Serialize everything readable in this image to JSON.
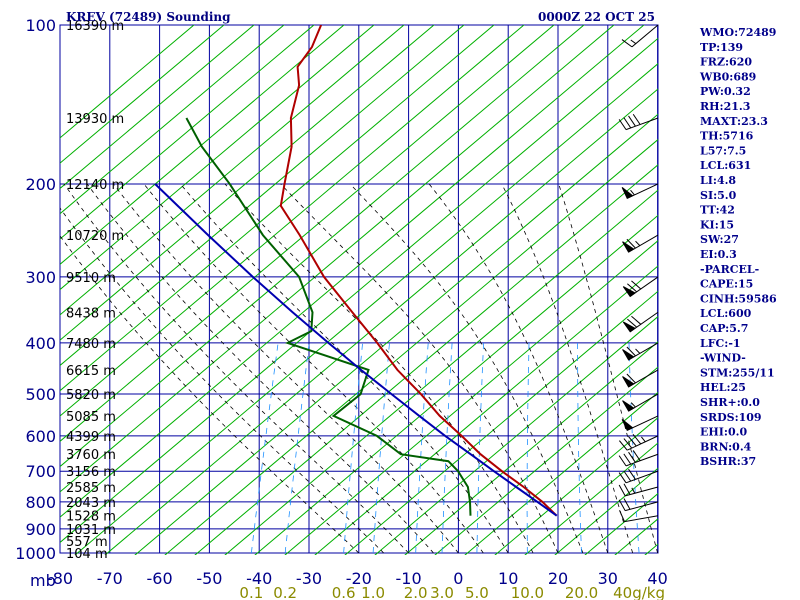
{
  "header": {
    "title": "KREV (72489) Sounding",
    "datetime": "0000Z 22 OCT 25"
  },
  "indices": [
    "WMO:72489",
    "TP:139",
    "FRZ:620",
    "WB0:689",
    "PW:0.32",
    "RH:21.3",
    "MAXT:23.3",
    "TH:5716",
    "L57:7.5",
    "LCL:631",
    "LI:4.8",
    "SI:5.0",
    "TT:42",
    "KI:15",
    "SW:27",
    "EI:0.3",
    "-PARCEL-",
    "CAPE:15",
    "CINH:59586",
    "LCL:600",
    "CAP:5.7",
    "LFC:-1",
    "-WIND-",
    "STM:255/11",
    "HEL:25",
    "SHR+:0.0",
    "SRDS:109",
    "EHI:0.0",
    "BRN:0.4",
    "BSHR:37"
  ],
  "colors": {
    "grid": "#0000a0",
    "dry_adiabat": "#00b000",
    "moist_adiabat": "#000000",
    "mixing_ratio": "#1e90ff",
    "temperature": "#b00000",
    "dewpoint": "#006000",
    "parcel": "#0000b0",
    "text": "#00008b",
    "mixing_label": "#8b8b00"
  },
  "chart_data": {
    "type": "line",
    "title": "KREV (72489) Sounding",
    "diagram": "skew-T log-P",
    "xlabel": "",
    "ylabel": "",
    "pressure_unit": "mb",
    "mixing_unit": "g/kg",
    "pressure_levels": [
      100,
      200,
      300,
      400,
      500,
      600,
      700,
      800,
      900,
      1000
    ],
    "pressure_tick_labels": [
      "100",
      "200",
      "300",
      "400",
      "500",
      "600",
      "700",
      "800",
      "900",
      "1000"
    ],
    "temperature_ticks": [
      -80,
      -70,
      -60,
      -50,
      -40,
      -30,
      -20,
      -10,
      0,
      10,
      20,
      30,
      40
    ],
    "temperature_tick_labels": [
      "-80",
      "-70",
      "-60",
      "-50",
      "-40",
      "-30",
      "-20",
      "-10",
      "0",
      "10",
      "20",
      "30",
      "40"
    ],
    "height_labels": [
      {
        "p": 100,
        "label": "16390 m"
      },
      {
        "p": 150,
        "label": "13930 m"
      },
      {
        "p": 200,
        "label": "12140 m"
      },
      {
        "p": 250,
        "label": "10720 m"
      },
      {
        "p": 300,
        "label": "9510 m"
      },
      {
        "p": 350,
        "label": "8438 m"
      },
      {
        "p": 400,
        "label": "7480 m"
      },
      {
        "p": 450,
        "label": "6615 m"
      },
      {
        "p": 500,
        "label": "5820 m"
      },
      {
        "p": 550,
        "label": "5085 m"
      },
      {
        "p": 600,
        "label": "4399 m"
      },
      {
        "p": 650,
        "label": "3760 m"
      },
      {
        "p": 700,
        "label": "3156 m"
      },
      {
        "p": 750,
        "label": "2585 m"
      },
      {
        "p": 800,
        "label": "2043 m"
      },
      {
        "p": 850,
        "label": "1528 m"
      },
      {
        "p": 900,
        "label": "1031 m"
      },
      {
        "p": 950,
        "label": "557 m"
      },
      {
        "p": 1000,
        "label": "104 m"
      }
    ],
    "mixing_ratio_labels": [
      {
        "w": 0.1,
        "label": "0.1"
      },
      {
        "w": 0.2,
        "label": "0.2"
      },
      {
        "w": 0.6,
        "label": "0.6"
      },
      {
        "w": 1.0,
        "label": "1.0"
      },
      {
        "w": 2.0,
        "label": "2.0"
      },
      {
        "w": 3.0,
        "label": "3.0"
      },
      {
        "w": 5.0,
        "label": "5.0"
      },
      {
        "w": 10.0,
        "label": "10.0"
      },
      {
        "w": 20.0,
        "label": "20.0"
      },
      {
        "w": 40.0,
        "label": "40g/kg"
      }
    ],
    "ylim": [
      1000,
      100
    ],
    "xlim": [
      -80,
      40
    ],
    "series": [
      {
        "key": "temperature",
        "points": [
          [
            850,
            17.3
          ],
          [
            800,
            13.5
          ],
          [
            750,
            8.8
          ],
          [
            700,
            3.4
          ],
          [
            650,
            -2.0
          ],
          [
            600,
            -7.0
          ],
          [
            550,
            -12.7
          ],
          [
            500,
            -17.9
          ],
          [
            450,
            -24.2
          ],
          [
            400,
            -30.0
          ],
          [
            350,
            -37.0
          ],
          [
            300,
            -45.0
          ],
          [
            250,
            -52.6
          ],
          [
            220,
            -58.3
          ],
          [
            200,
            -59.0
          ],
          [
            170,
            -60.0
          ],
          [
            150,
            -62.0
          ],
          [
            130,
            -62.5
          ],
          [
            120,
            -64.0
          ],
          [
            110,
            -62.4
          ],
          [
            100,
            -62.0
          ]
        ]
      },
      {
        "key": "dewpoint",
        "points": [
          [
            850,
            0.0
          ],
          [
            800,
            -1.0
          ],
          [
            750,
            -2.4
          ],
          [
            700,
            -5.4
          ],
          [
            670,
            -8.0
          ],
          [
            650,
            -18.0
          ],
          [
            600,
            -24.0
          ],
          [
            550,
            -34.0
          ],
          [
            500,
            -30.0
          ],
          [
            450,
            -30.0
          ],
          [
            400,
            -48.0
          ],
          [
            380,
            -44.0
          ],
          [
            350,
            -45.0
          ],
          [
            300,
            -50.0
          ],
          [
            250,
            -60.0
          ],
          [
            200,
            -70.0
          ],
          [
            170,
            -78.0
          ],
          [
            150,
            -83.0
          ]
        ]
      },
      {
        "key": "parcel",
        "points": [
          [
            850,
            17.3
          ],
          [
            800,
            12.5
          ],
          [
            750,
            7.3
          ],
          [
            700,
            1.8
          ],
          [
            650,
            -4.0
          ],
          [
            600,
            -10.3
          ],
          [
            550,
            -16.8
          ],
          [
            500,
            -23.8
          ],
          [
            450,
            -31.5
          ],
          [
            400,
            -39.8
          ],
          [
            350,
            -49.0
          ],
          [
            300,
            -59.3
          ],
          [
            250,
            -71.0
          ],
          [
            200,
            -85.0
          ]
        ]
      }
    ],
    "winds": [
      {
        "p": 850,
        "dir": 260,
        "spd": 11
      },
      {
        "p": 800,
        "dir": 255,
        "spd": 22
      },
      {
        "p": 750,
        "dir": 255,
        "spd": 25
      },
      {
        "p": 700,
        "dir": 250,
        "spd": 30
      },
      {
        "p": 650,
        "dir": 250,
        "spd": 40
      },
      {
        "p": 600,
        "dir": 245,
        "spd": 45
      },
      {
        "p": 550,
        "dir": 245,
        "spd": 50
      },
      {
        "p": 500,
        "dir": 240,
        "spd": 55
      },
      {
        "p": 450,
        "dir": 240,
        "spd": 60
      },
      {
        "p": 400,
        "dir": 240,
        "spd": 65
      },
      {
        "p": 350,
        "dir": 235,
        "spd": 70
      },
      {
        "p": 300,
        "dir": 235,
        "spd": 70
      },
      {
        "p": 250,
        "dir": 240,
        "spd": 65
      },
      {
        "p": 200,
        "dir": 245,
        "spd": 55
      },
      {
        "p": 150,
        "dir": 250,
        "spd": 40
      },
      {
        "p": 100,
        "dir": 230,
        "spd": 15
      }
    ],
    "grid": true,
    "legend": "none"
  }
}
